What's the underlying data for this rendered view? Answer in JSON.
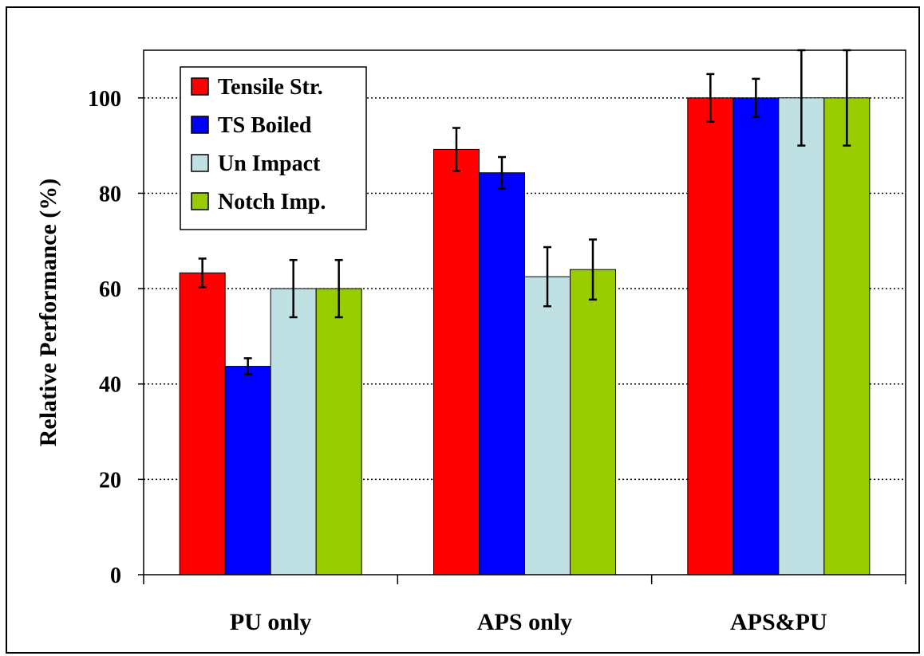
{
  "chart_data": {
    "type": "bar",
    "title": "",
    "xlabel": "",
    "ylabel": "Relative Performance (%)",
    "ylim": [
      0,
      110
    ],
    "yticks": [
      "0",
      "20",
      "40",
      "60",
      "80",
      "100"
    ],
    "grid": "horizontal dotted",
    "legend_position": "top-left",
    "categories": [
      "PU only",
      "APS only",
      "APS&PU"
    ],
    "series": [
      {
        "name": "Tensile Str.",
        "color": "#ff0000",
        "values": [
          63.3,
          89.2,
          100
        ],
        "errors": [
          3.0,
          4.5,
          5.0
        ]
      },
      {
        "name": "TS Boiled",
        "color": "#0000ff",
        "values": [
          43.7,
          84.3,
          100
        ],
        "errors": [
          1.7,
          3.3,
          4.0
        ]
      },
      {
        "name": "Un Impact",
        "color": "#bfe1e4",
        "values": [
          60,
          62.5,
          100
        ],
        "errors": [
          6.0,
          6.2,
          10.0
        ]
      },
      {
        "name": "Notch Imp.",
        "color": "#99cc00",
        "values": [
          60,
          64,
          100
        ],
        "errors": [
          6.0,
          6.3,
          10.0
        ]
      }
    ]
  }
}
